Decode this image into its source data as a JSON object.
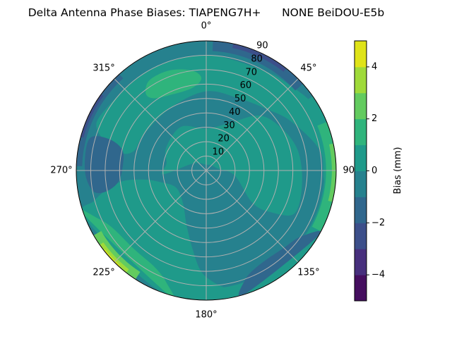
{
  "chart_data": {
    "type": "contour",
    "projection": "polar",
    "title": "Delta Antenna Phase Biases: TIAPENG7H+      NONE BeiDOU-E5b",
    "theta_zero": "north",
    "theta_direction": "clockwise",
    "angle_tick_labels": [
      "0°",
      "45°",
      "90°",
      "135°",
      "180°",
      "225°",
      "270°",
      "315°"
    ],
    "angle_ticks": [
      0,
      45,
      90,
      135,
      180,
      225,
      270,
      315
    ],
    "radial_ticks": [
      10,
      20,
      30,
      40,
      50,
      60,
      70,
      80,
      90
    ],
    "radial_tick_labels": [
      "10",
      "20",
      "30",
      "40",
      "50",
      "60",
      "70",
      "80",
      "90"
    ],
    "radial_label_angle": 22.5,
    "rlim": [
      0,
      90
    ],
    "grid": true,
    "colorbar": {
      "label": "Bias (mm)",
      "range": [
        -5,
        5
      ],
      "ticks": [
        -4,
        -2,
        0,
        2,
        4
      ],
      "tick_labels": [
        "−4",
        "−2",
        "0",
        "2",
        "4"
      ],
      "levels": [
        -5,
        -4,
        -3,
        -2,
        -1,
        0,
        1,
        2,
        3,
        4,
        5
      ],
      "colors": [
        "#450e5f",
        "#472f7d",
        "#3c4f8a",
        "#30678d",
        "#26818e",
        "#1f9a8a",
        "#2fb47c",
        "#63cb5f",
        "#9fda3a",
        "#dfe318"
      ]
    },
    "regions": [
      {
        "level": [
          -1,
          0
        ],
        "sector": [
          0,
          360,
          0,
          90
        ]
      },
      {
        "level": [
          0,
          1
        ],
        "polygon": [
          [
            265,
            30
          ],
          [
            280,
            28
          ],
          [
            300,
            32
          ],
          [
            330,
            35
          ],
          [
            0,
            29
          ],
          [
            25,
            36
          ],
          [
            44,
            53
          ],
          [
            61,
            60
          ],
          [
            78,
            65
          ],
          [
            98,
            67
          ],
          [
            116,
            68
          ],
          [
            123,
            53
          ],
          [
            125,
            39
          ],
          [
            100,
            20
          ],
          [
            80,
            8
          ],
          [
            40,
            5
          ],
          [
            0,
            4
          ],
          [
            300,
            10
          ]
        ]
      },
      {
        "level": [
          0,
          1
        ],
        "polygon": [
          [
            282,
            62
          ],
          [
            290,
            80
          ],
          [
            300,
            82
          ],
          [
            330,
            80
          ],
          [
            0,
            80
          ],
          [
            30,
            80
          ],
          [
            45,
            83
          ],
          [
            60,
            88
          ],
          [
            75,
            90
          ],
          [
            100,
            90
          ],
          [
            95,
            82
          ],
          [
            80,
            80
          ],
          [
            60,
            68
          ],
          [
            45,
            60
          ],
          [
            25,
            55
          ],
          [
            0,
            55
          ],
          [
            330,
            50
          ],
          [
            300,
            50
          ],
          [
            285,
            52
          ]
        ]
      },
      {
        "level": [
          0,
          1
        ],
        "polygon": [
          [
            248,
            90
          ],
          [
            255,
            80
          ],
          [
            262,
            62
          ],
          [
            262,
            45
          ],
          [
            255,
            32
          ],
          [
            240,
            24
          ],
          [
            215,
            28
          ],
          [
            200,
            40
          ],
          [
            190,
            55
          ],
          [
            183,
            70
          ],
          [
            176,
            78
          ],
          [
            168,
            86
          ],
          [
            170,
            90
          ],
          [
            200,
            90
          ]
        ]
      },
      {
        "level": [
          0,
          1
        ],
        "sector": [
          55,
          175,
          82,
          90
        ]
      },
      {
        "level": [
          1,
          2
        ],
        "polygon": [
          [
            322,
            68
          ],
          [
            328,
            74
          ],
          [
            340,
            74
          ],
          [
            352,
            70
          ],
          [
            357,
            64
          ],
          [
            350,
            58
          ],
          [
            335,
            58
          ],
          [
            324,
            62
          ]
        ]
      },
      {
        "level": [
          1,
          2
        ],
        "polygon": [
          [
            197,
            90
          ],
          [
            200,
            82
          ],
          [
            208,
            76
          ],
          [
            222,
            74
          ],
          [
            238,
            76
          ],
          [
            246,
            82
          ],
          [
            250,
            90
          ]
        ]
      },
      {
        "level": [
          1,
          2
        ],
        "sector": [
          68,
          118,
          83,
          90
        ]
      },
      {
        "level": [
          2,
          3
        ],
        "sector": [
          78,
          104,
          87,
          90
        ]
      },
      {
        "level": [
          2,
          3
        ],
        "sector": [
          213,
          240,
          84,
          90
        ]
      },
      {
        "level": [
          3,
          4
        ],
        "sector": [
          218,
          235,
          87,
          90
        ]
      },
      {
        "level": [
          4,
          5
        ],
        "sector": [
          222,
          232,
          89,
          90
        ]
      },
      {
        "level": [
          -2,
          -1
        ],
        "polygon": [
          [
            120,
            90
          ],
          [
            125,
            80
          ],
          [
            135,
            76
          ],
          [
            150,
            75
          ],
          [
            160,
            80
          ],
          [
            163,
            90
          ]
        ]
      },
      {
        "level": [
          -2,
          -1
        ],
        "polygon": [
          [
            258,
            72
          ],
          [
            262,
            62
          ],
          [
            272,
            58
          ],
          [
            284,
            60
          ],
          [
            288,
            72
          ],
          [
            285,
            84
          ],
          [
            270,
            84
          ],
          [
            260,
            80
          ]
        ]
      },
      {
        "level": [
          -2,
          -1
        ],
        "sector": [
          272,
          318,
          86,
          90
        ]
      },
      {
        "level": [
          -2,
          -1
        ],
        "sector": [
          3,
          48,
          83,
          90
        ]
      },
      {
        "level": [
          -3,
          -2
        ],
        "sector": [
          12,
          38,
          87,
          90
        ]
      },
      {
        "level": [
          -3,
          -2
        ],
        "sector": [
          285,
          306,
          88,
          90
        ]
      }
    ]
  }
}
